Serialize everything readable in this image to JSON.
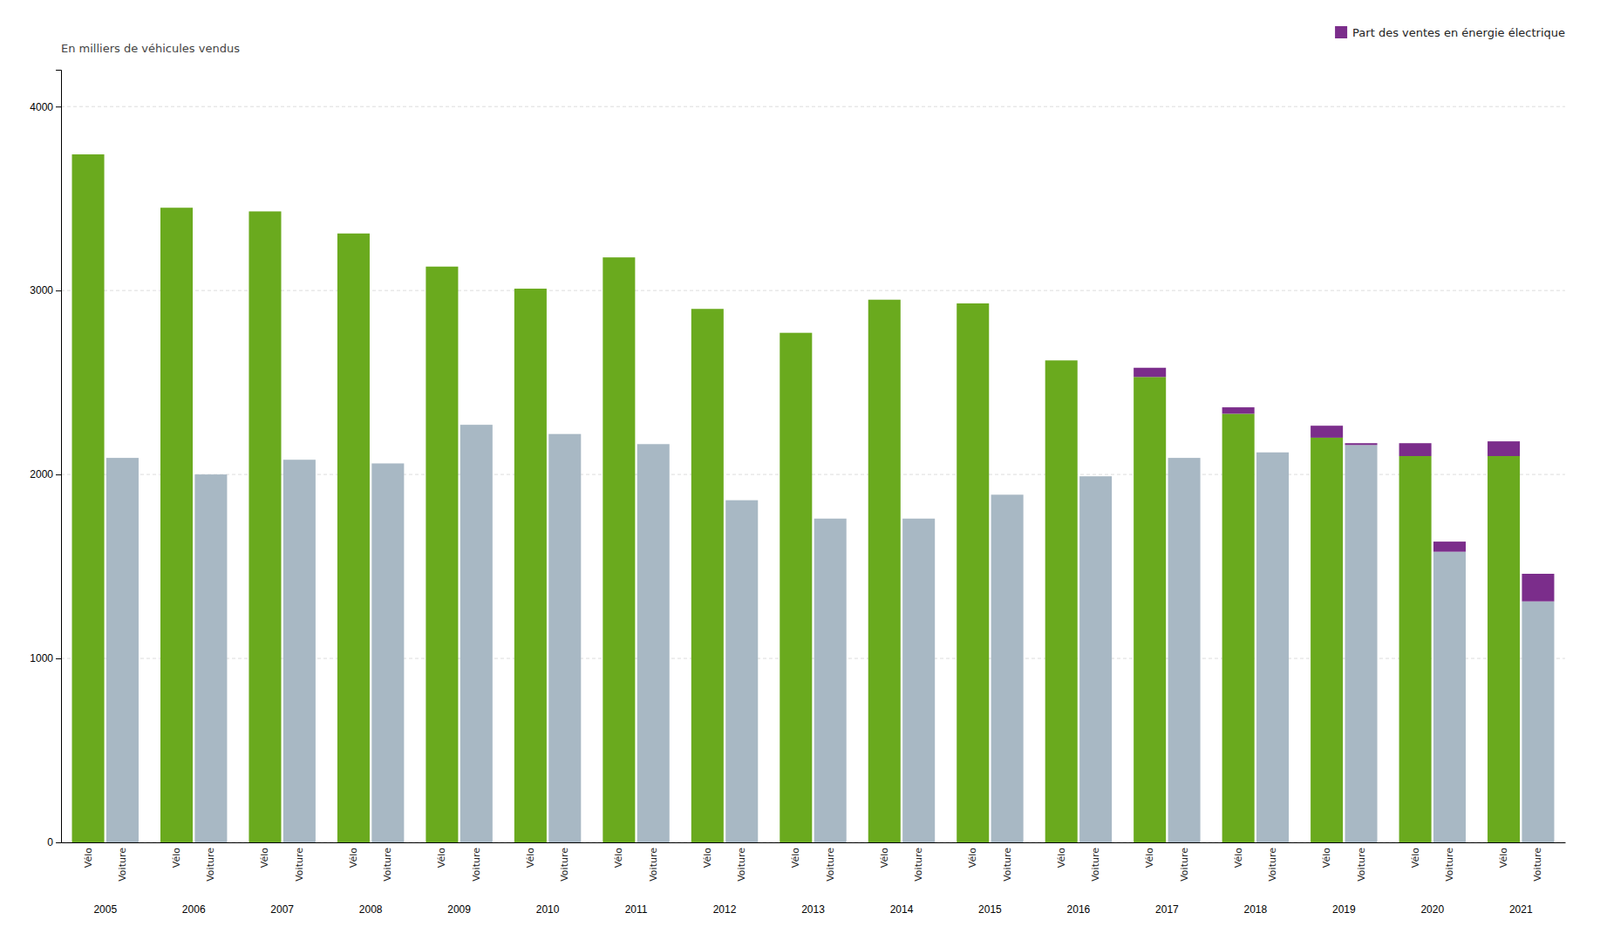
{
  "chart_data": {
    "type": "bar",
    "stacked": true,
    "grid": true,
    "legend": "upper right",
    "ylabel": "En milliers de véhicules vendus",
    "categories": [
      "2005",
      "2006",
      "2007",
      "2008",
      "2009",
      "2010",
      "2011",
      "2012",
      "2013",
      "2014",
      "2015",
      "2016",
      "2017",
      "2018",
      "2019",
      "2020",
      "2021"
    ],
    "stacks": [
      {
        "label": "Vélo",
        "series": [
          {
            "color": "#6aaa1e",
            "values": [
              3740,
              3450,
              3430,
              3310,
              3130,
              3010,
              3180,
              2900,
              2770,
              2950,
              2930,
              2620,
              2530,
              2330,
              2200,
              2100,
              2100
            ]
          },
          {
            "name": "Part des ventes en énergie électrique",
            "color": "#7b2d8b",
            "values": [
              0,
              0,
              0,
              0,
              0,
              0,
              0,
              0,
              0,
              0,
              0,
              0,
              50,
              35,
              65,
              70,
              80
            ]
          }
        ]
      },
      {
        "label": "Voiture",
        "series": [
          {
            "color": "#a8b8c4",
            "values": [
              2090,
              2000,
              2080,
              2060,
              2270,
              2220,
              2165,
              1860,
              1760,
              1760,
              1890,
              1990,
              2090,
              2120,
              2160,
              1580,
              1310
            ]
          },
          {
            "name": "Part des ventes en énergie électrique",
            "color": "#7b2d8b",
            "values": [
              0,
              0,
              0,
              0,
              0,
              0,
              0,
              0,
              0,
              0,
              0,
              0,
              0,
              0,
              10,
              55,
              150
            ]
          }
        ]
      }
    ],
    "ylim": [
      0,
      4200
    ],
    "yticks": [
      0,
      1000,
      2000,
      3000,
      4000
    ]
  }
}
